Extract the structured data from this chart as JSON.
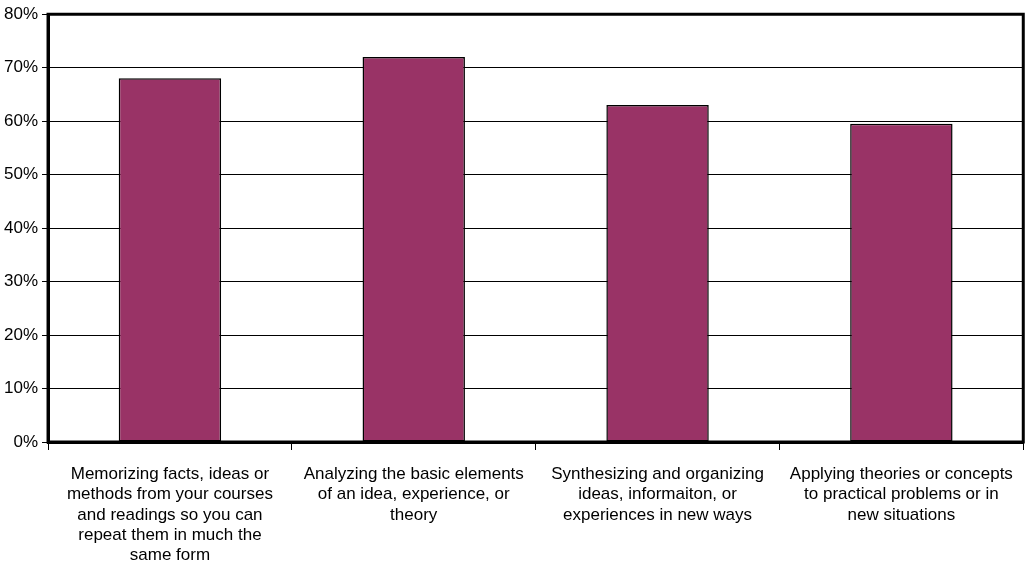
{
  "chart_data": {
    "type": "bar",
    "categories": [
      "Memorizing facts, ideas or methods from your courses and readings so you can repeat them in much the same form",
      "Analyzing the basic elements of an idea, experience, or theory",
      "Synthesizing and organizing ideas, informaiton, or experiences in new ways",
      "Applying theories or concepts to practical problems or in new situations"
    ],
    "values": [
      68,
      72,
      63,
      59.5
    ],
    "color": "#993366",
    "ylim": [
      0,
      80
    ],
    "yticks": [
      {
        "value": 0,
        "label": "0%"
      },
      {
        "value": 10,
        "label": "10%"
      },
      {
        "value": 20,
        "label": "20%"
      },
      {
        "value": 30,
        "label": "30%"
      },
      {
        "value": 40,
        "label": "40%"
      },
      {
        "value": 50,
        "label": "50%"
      },
      {
        "value": 60,
        "label": "60%"
      },
      {
        "value": 70,
        "label": "70%"
      },
      {
        "value": 80,
        "label": "80%"
      }
    ],
    "grid": "y",
    "legend": false
  }
}
